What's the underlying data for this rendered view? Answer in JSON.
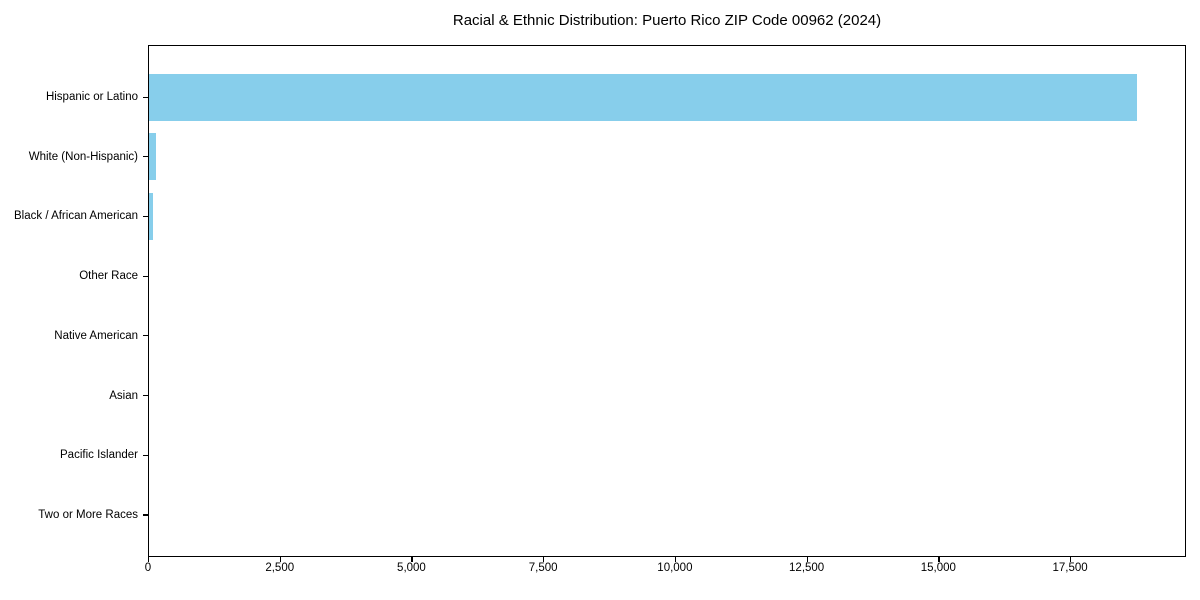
{
  "figure": {
    "title": "Racial & Ethnic Distribution: Puerto Rico ZIP Code 00962 (2024)"
  },
  "chart_data": {
    "type": "bar",
    "orientation": "horizontal",
    "title": "Racial & Ethnic Distribution: Puerto Rico ZIP Code 00962 (2024)",
    "categories": [
      "Hispanic or Latino",
      "White (Non-Hispanic)",
      "Black / African American",
      "Other Race",
      "Native American",
      "Asian",
      "Pacific Islander",
      "Two or More Races"
    ],
    "values": [
      18750,
      130,
      75,
      0,
      0,
      0,
      0,
      0
    ],
    "xlabel": "",
    "ylabel": "",
    "xlim": [
      0,
      19700
    ],
    "xticks": [
      0,
      2500,
      5000,
      7500,
      10000,
      12500,
      15000,
      17500
    ],
    "xtick_labels": [
      "0",
      "2,500",
      "5,000",
      "7,500",
      "10,000",
      "12,500",
      "15,000",
      "17,500"
    ],
    "bar_color": "#87CEEB",
    "axis_color": "#000000",
    "background_color": "#ffffff",
    "grid": false,
    "legend": null
  }
}
